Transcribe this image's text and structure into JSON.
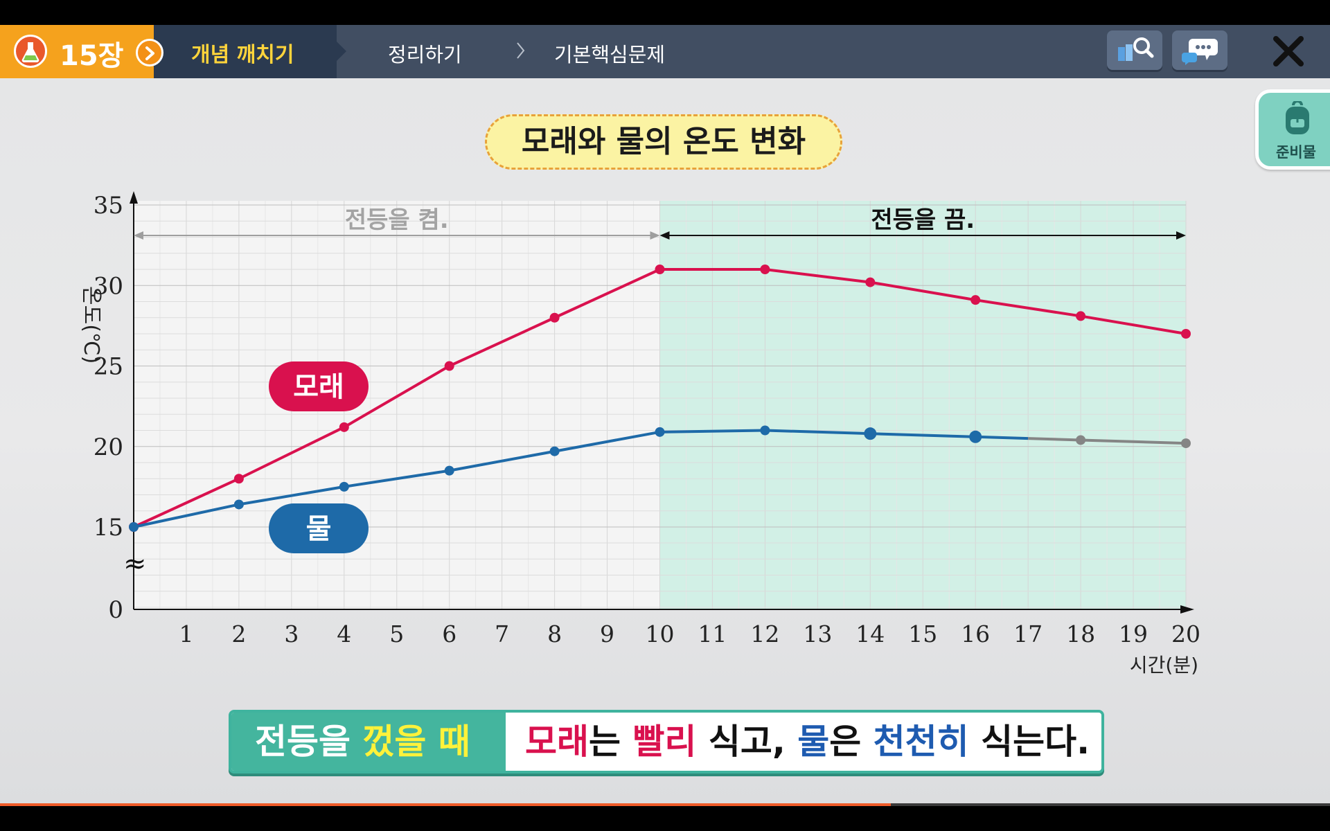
{
  "header": {
    "chapter_label": "15장",
    "active_tab": "개념 깨치기",
    "tab2": "정리하기",
    "tab3": "기본핵심문제",
    "icons": [
      "flask-icon",
      "chevron-right-icon",
      "book-search-icon",
      "chat-icon",
      "close-icon"
    ]
  },
  "side": {
    "prep_label": "준비물"
  },
  "title": "모래와 물의 온도 변화",
  "chart_data": {
    "type": "line",
    "title": "모래와 물의 온도 변화",
    "ylabel": "온도(℃)",
    "xlabel": "시간(분)",
    "ylim": [
      0,
      35
    ],
    "xlim": [
      0,
      20
    ],
    "yticks": [
      0,
      15,
      20,
      25,
      30,
      35
    ],
    "xticks": [
      1,
      2,
      3,
      4,
      5,
      6,
      7,
      8,
      9,
      10,
      11,
      12,
      13,
      14,
      15,
      16,
      17,
      18,
      19,
      20
    ],
    "y_break": "≈",
    "regions": [
      {
        "label": "전등을 켬.",
        "from": 0,
        "to": 10,
        "color": "#f4f4f4"
      },
      {
        "label": "전등을 끔.",
        "from": 10,
        "to": 20,
        "color": "#d2f0e6"
      }
    ],
    "series": [
      {
        "name": "모래",
        "color": "#d9114e",
        "x": [
          0,
          2,
          4,
          6,
          8,
          10,
          12,
          14,
          16,
          18,
          20
        ],
        "y": [
          15,
          18,
          21.2,
          25,
          28,
          31,
          31,
          30.2,
          29.1,
          28.1,
          27
        ]
      },
      {
        "name": "물",
        "color": "#1e6aa8",
        "x": [
          0,
          2,
          4,
          6,
          8,
          10,
          12,
          14,
          16,
          18,
          20
        ],
        "y": [
          15,
          16.4,
          17.5,
          18.5,
          19.7,
          20.9,
          21,
          20.8,
          20.6,
          20.4,
          20.2
        ],
        "gray_after": 17
      }
    ]
  },
  "summary": {
    "left_a": "전등을 ",
    "left_b": "껐을 때",
    "r1": "모래",
    "t1": "는 ",
    "r2": "빨리",
    "t2": " 식고, ",
    "b1": "물",
    "t3": "은 ",
    "b2": "천천히",
    "t4": " 식는다."
  },
  "progress": {
    "fraction": 0.67
  }
}
